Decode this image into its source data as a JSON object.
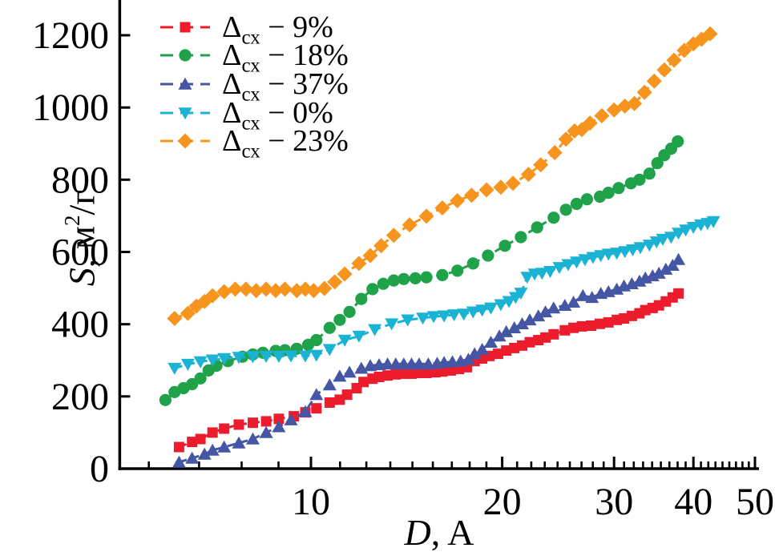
{
  "figure": {
    "background": "#ffffff",
    "text_color": "#000000",
    "axis_color": "#000000"
  },
  "chart_data": {
    "type": "scatter",
    "title": "",
    "grid": false,
    "legend_position": "top-left",
    "x_axis": {
      "title": {
        "var": "D",
        "rest": ", A"
      },
      "scale": "log",
      "range": [
        5,
        50
      ],
      "major_ticks": [
        10,
        20,
        30,
        40,
        50
      ],
      "minor_tick_rule": "each major interval divided into 9 equal parts"
    },
    "y_axis": {
      "title": {
        "var": "S",
        "pre": ", м",
        "sup": "2",
        "post": "/г"
      },
      "scale": "linear",
      "range": [
        0,
        1300
      ],
      "major_ticks": [
        0,
        200,
        400,
        600,
        800,
        1000,
        1200
      ]
    },
    "series": [
      {
        "id": "cx9",
        "legend_label": {
          "delta": "Δ",
          "sub": "сх",
          "rest": "− 9%"
        },
        "marker": "square",
        "color": "#EC1C2C",
        "points": [
          [
            6.2,
            60
          ],
          [
            6.5,
            74
          ],
          [
            6.7,
            82
          ],
          [
            7.0,
            100
          ],
          [
            7.3,
            111
          ],
          [
            7.7,
            122
          ],
          [
            8.1,
            127
          ],
          [
            8.5,
            131
          ],
          [
            8.9,
            138
          ],
          [
            9.4,
            145
          ],
          [
            9.8,
            156
          ],
          [
            10.2,
            167
          ],
          [
            10.7,
            183
          ],
          [
            11.1,
            191
          ],
          [
            11.4,
            205
          ],
          [
            11.8,
            223
          ],
          [
            12.1,
            240
          ],
          [
            12.5,
            249
          ],
          [
            12.8,
            254
          ],
          [
            13.2,
            258
          ],
          [
            13.6,
            261
          ],
          [
            14.0,
            263
          ],
          [
            14.4,
            263
          ],
          [
            14.8,
            265
          ],
          [
            15.2,
            265
          ],
          [
            15.7,
            267
          ],
          [
            16.1,
            269
          ],
          [
            16.6,
            272
          ],
          [
            17.1,
            276
          ],
          [
            17.6,
            281
          ],
          [
            18.1,
            298
          ],
          [
            18.6,
            305
          ],
          [
            19.1,
            312
          ],
          [
            19.7,
            318
          ],
          [
            20.3,
            327
          ],
          [
            20.9,
            334
          ],
          [
            21.5,
            341
          ],
          [
            22.1,
            350
          ],
          [
            22.8,
            356
          ],
          [
            23.4,
            363
          ],
          [
            24.1,
            372
          ],
          [
            25.1,
            383
          ],
          [
            25.9,
            390
          ],
          [
            26.7,
            394
          ],
          [
            27.6,
            396
          ],
          [
            28.5,
            401
          ],
          [
            29.4,
            405
          ],
          [
            30.3,
            412
          ],
          [
            31.1,
            416
          ],
          [
            32.0,
            423
          ],
          [
            32.9,
            430
          ],
          [
            33.6,
            439
          ],
          [
            34.5,
            445
          ],
          [
            35.3,
            452
          ],
          [
            36.2,
            463
          ],
          [
            37.1,
            474
          ],
          [
            37.9,
            485
          ]
        ]
      },
      {
        "id": "cx18",
        "legend_label": {
          "delta": "Δ",
          "sub": "сх",
          "rest": "− 18%"
        },
        "marker": "circle",
        "color": "#1FA24A",
        "points": [
          [
            5.9,
            190
          ],
          [
            6.1,
            212
          ],
          [
            6.3,
            223
          ],
          [
            6.5,
            234
          ],
          [
            6.7,
            250
          ],
          [
            6.9,
            272
          ],
          [
            7.1,
            285
          ],
          [
            7.4,
            298
          ],
          [
            7.8,
            310
          ],
          [
            8.1,
            316
          ],
          [
            8.4,
            321
          ],
          [
            8.8,
            326
          ],
          [
            9.1,
            328
          ],
          [
            9.5,
            332
          ],
          [
            9.9,
            343
          ],
          [
            10.2,
            356
          ],
          [
            10.7,
            390
          ],
          [
            11.1,
            412
          ],
          [
            11.5,
            434
          ],
          [
            12.0,
            470
          ],
          [
            12.5,
            497
          ],
          [
            13.0,
            512
          ],
          [
            13.5,
            521
          ],
          [
            14.0,
            525
          ],
          [
            14.6,
            527
          ],
          [
            15.2,
            530
          ],
          [
            16.1,
            536
          ],
          [
            17.0,
            548
          ],
          [
            18.0,
            568
          ],
          [
            19.0,
            590
          ],
          [
            20.2,
            617
          ],
          [
            21.4,
            641
          ],
          [
            22.7,
            668
          ],
          [
            24.1,
            695
          ],
          [
            25.2,
            717
          ],
          [
            26.2,
            733
          ],
          [
            27.2,
            746
          ],
          [
            28.5,
            753
          ],
          [
            29.4,
            764
          ],
          [
            30.5,
            777
          ],
          [
            31.9,
            790
          ],
          [
            32.9,
            800
          ],
          [
            34.1,
            817
          ],
          [
            35.1,
            846
          ],
          [
            36.0,
            868
          ],
          [
            36.9,
            886
          ],
          [
            37.8,
            906
          ]
        ]
      },
      {
        "id": "cx37",
        "legend_label": {
          "delta": "Δ",
          "sub": "сх",
          "rest": "− 37%"
        },
        "marker": "triangle-up",
        "color": "#4456A4",
        "points": [
          [
            6.2,
            18
          ],
          [
            6.5,
            29
          ],
          [
            6.8,
            40
          ],
          [
            7.0,
            51
          ],
          [
            7.3,
            60
          ],
          [
            7.7,
            71
          ],
          [
            8.1,
            82
          ],
          [
            8.5,
            100
          ],
          [
            8.9,
            116
          ],
          [
            9.3,
            135
          ],
          [
            9.8,
            158
          ],
          [
            10.2,
            205
          ],
          [
            10.7,
            232
          ],
          [
            11.1,
            256
          ],
          [
            11.5,
            267
          ],
          [
            12.0,
            278
          ],
          [
            12.4,
            285
          ],
          [
            12.8,
            288
          ],
          [
            13.2,
            290
          ],
          [
            13.6,
            290
          ],
          [
            14.0,
            290
          ],
          [
            14.4,
            290
          ],
          [
            14.8,
            290
          ],
          [
            15.3,
            290
          ],
          [
            15.8,
            292
          ],
          [
            16.2,
            294
          ],
          [
            16.7,
            296
          ],
          [
            17.2,
            298
          ],
          [
            17.7,
            303
          ],
          [
            18.1,
            318
          ],
          [
            18.6,
            330
          ],
          [
            19.2,
            350
          ],
          [
            19.8,
            367
          ],
          [
            20.3,
            379
          ],
          [
            20.9,
            390
          ],
          [
            21.5,
            401
          ],
          [
            22.1,
            412
          ],
          [
            22.8,
            423
          ],
          [
            23.4,
            434
          ],
          [
            24.1,
            445
          ],
          [
            25.1,
            452
          ],
          [
            25.9,
            461
          ],
          [
            26.8,
            479
          ],
          [
            27.7,
            474
          ],
          [
            28.6,
            485
          ],
          [
            29.4,
            490
          ],
          [
            30.3,
            497
          ],
          [
            31.1,
            506
          ],
          [
            32.0,
            512
          ],
          [
            32.9,
            519
          ],
          [
            33.6,
            528
          ],
          [
            34.5,
            534
          ],
          [
            35.3,
            541
          ],
          [
            36.2,
            552
          ],
          [
            37.1,
            563
          ],
          [
            37.9,
            579
          ]
        ]
      },
      {
        "id": "cx0",
        "legend_label": {
          "delta": "Δ",
          "sub": "сх",
          "rest": "− 0%"
        },
        "marker": "triangle-down",
        "color": "#1BB3D3",
        "points": [
          [
            6.1,
            278
          ],
          [
            6.4,
            289
          ],
          [
            6.7,
            296
          ],
          [
            7.0,
            301
          ],
          [
            7.3,
            305
          ],
          [
            7.7,
            308
          ],
          [
            8.1,
            310
          ],
          [
            8.5,
            311
          ],
          [
            8.9,
            311
          ],
          [
            9.3,
            312
          ],
          [
            9.8,
            312
          ],
          [
            10.2,
            314
          ],
          [
            10.7,
            330
          ],
          [
            11.3,
            356
          ],
          [
            11.9,
            367
          ],
          [
            12.6,
            385
          ],
          [
            13.4,
            401
          ],
          [
            14.2,
            412
          ],
          [
            15.0,
            417
          ],
          [
            15.6,
            421
          ],
          [
            16.2,
            423
          ],
          [
            16.8,
            426
          ],
          [
            17.4,
            428
          ],
          [
            18.0,
            434
          ],
          [
            18.6,
            439
          ],
          [
            19.2,
            445
          ],
          [
            19.9,
            454
          ],
          [
            20.5,
            463
          ],
          [
            21.0,
            474
          ],
          [
            21.4,
            486
          ],
          [
            21.9,
            530
          ],
          [
            22.5,
            539
          ],
          [
            23.1,
            541
          ],
          [
            23.8,
            546
          ],
          [
            24.6,
            557
          ],
          [
            25.4,
            565
          ],
          [
            26.2,
            572
          ],
          [
            27.0,
            579
          ],
          [
            27.8,
            585
          ],
          [
            28.6,
            590
          ],
          [
            29.4,
            594
          ],
          [
            30.3,
            597
          ],
          [
            31.2,
            601
          ],
          [
            32.1,
            606
          ],
          [
            33.0,
            612
          ],
          [
            34.1,
            619
          ],
          [
            35.0,
            628
          ],
          [
            35.8,
            635
          ],
          [
            36.9,
            641
          ],
          [
            37.9,
            652
          ],
          [
            38.9,
            661
          ],
          [
            40.0,
            668
          ],
          [
            41.1,
            675
          ],
          [
            42.1,
            679
          ],
          [
            43.0,
            684
          ]
        ]
      },
      {
        "id": "cx23",
        "legend_label": {
          "delta": "Δ",
          "sub": "сх",
          "rest": "− 23%"
        },
        "marker": "diamond",
        "color": "#F7941E",
        "points": [
          [
            6.1,
            416
          ],
          [
            6.4,
            430
          ],
          [
            6.6,
            450
          ],
          [
            6.8,
            463
          ],
          [
            7.0,
            479
          ],
          [
            7.3,
            490
          ],
          [
            7.6,
            497
          ],
          [
            7.9,
            497
          ],
          [
            8.2,
            493
          ],
          [
            8.5,
            497
          ],
          [
            8.8,
            493
          ],
          [
            9.1,
            497
          ],
          [
            9.5,
            493
          ],
          [
            9.8,
            497
          ],
          [
            10.1,
            493
          ],
          [
            10.5,
            499
          ],
          [
            10.9,
            517
          ],
          [
            11.3,
            539
          ],
          [
            11.9,
            568
          ],
          [
            12.4,
            590
          ],
          [
            12.9,
            617
          ],
          [
            13.5,
            646
          ],
          [
            14.3,
            675
          ],
          [
            15.2,
            699
          ],
          [
            16.1,
            722
          ],
          [
            17.0,
            742
          ],
          [
            17.9,
            757
          ],
          [
            18.9,
            772
          ],
          [
            19.9,
            779
          ],
          [
            20.8,
            790
          ],
          [
            22.0,
            815
          ],
          [
            23.0,
            841
          ],
          [
            24.2,
            875
          ],
          [
            25.2,
            912
          ],
          [
            26.0,
            935
          ],
          [
            26.7,
            939
          ],
          [
            27.5,
            957
          ],
          [
            28.7,
            977
          ],
          [
            30.0,
            993
          ],
          [
            31.2,
            1004
          ],
          [
            32.3,
            1011
          ],
          [
            33.5,
            1042
          ],
          [
            34.7,
            1073
          ],
          [
            36.0,
            1104
          ],
          [
            37.3,
            1131
          ],
          [
            38.7,
            1158
          ],
          [
            40.0,
            1176
          ],
          [
            41.2,
            1189
          ],
          [
            42.5,
            1204
          ]
        ]
      }
    ]
  }
}
